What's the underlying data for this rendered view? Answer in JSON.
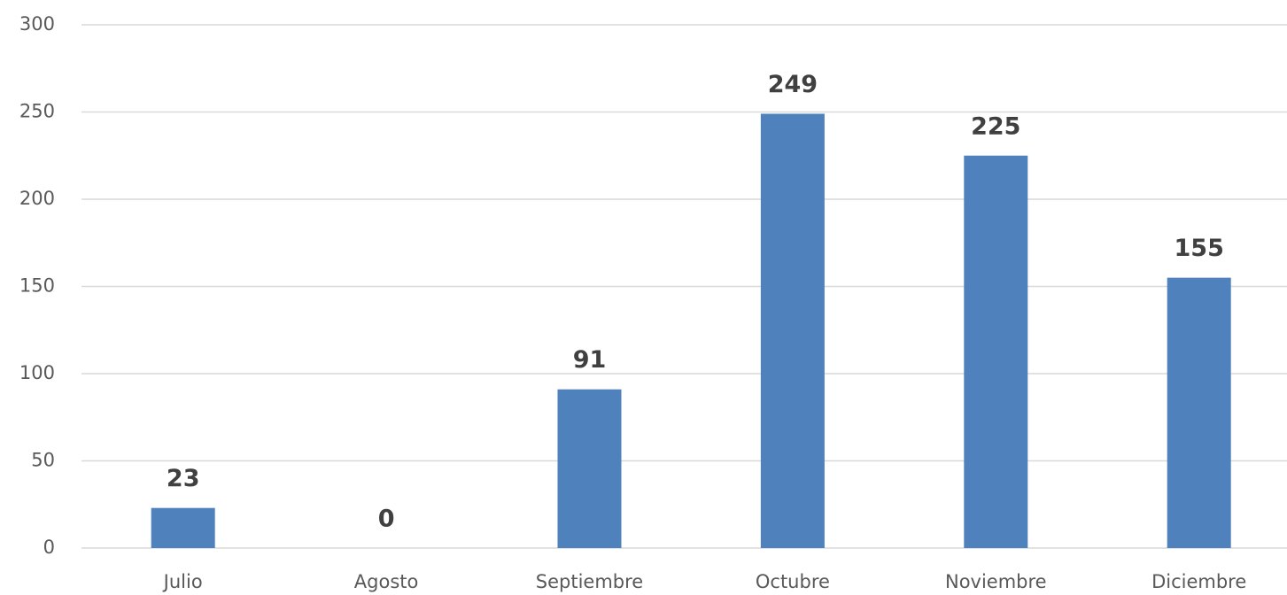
{
  "chart_data": {
    "type": "bar",
    "categories": [
      "Julio",
      "Agosto",
      "Septiembre",
      "Octubre",
      "Noviembre",
      "Diciembre"
    ],
    "values": [
      23,
      0,
      91,
      249,
      225,
      155
    ],
    "color": "#4f81bd",
    "ylim": [
      0,
      300
    ],
    "yticks": [
      0,
      50,
      100,
      150,
      200,
      250,
      300
    ],
    "grid": true,
    "data_labels": true
  }
}
